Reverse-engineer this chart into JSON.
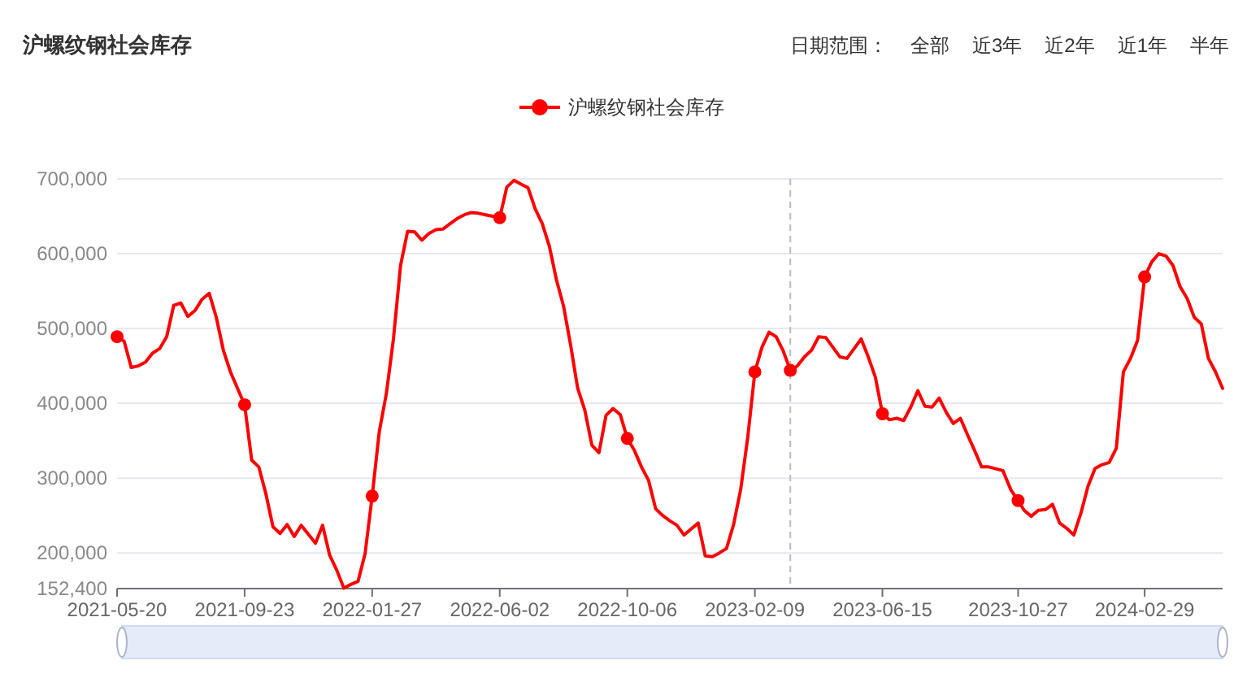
{
  "chart_data": {
    "type": "line",
    "title": "沪螺纹钢社会库存",
    "annotations": [
      "日期范围：",
      "全部",
      "近3年",
      "近2年",
      "近1年",
      "半年"
    ],
    "xlim": [
      "2021-05-20",
      "2024-05-16"
    ],
    "xticks": [
      "2021-05-20",
      "2021-09-23",
      "2022-01-27",
      "2022-06-02",
      "2022-10-06",
      "2023-02-09",
      "2023-06-15",
      "2023-10-27",
      "2024-02-29"
    ],
    "ylim": [
      152400,
      700000
    ],
    "yticks": [
      {
        "value": 152400,
        "label": "152,400"
      },
      {
        "value": 200000,
        "label": "200,000"
      },
      {
        "value": 300000,
        "label": "300,000"
      },
      {
        "value": 400000,
        "label": "400,000"
      },
      {
        "value": 500000,
        "label": "500,000"
      },
      {
        "value": 600000,
        "label": "600,000"
      },
      {
        "value": 700000,
        "label": "700,000"
      }
    ],
    "grid": "y",
    "legend": "top",
    "line_style": "solid",
    "ref_lines": [
      {
        "axis": "x",
        "value": "2023-03-16",
        "color": "#bbbbbb",
        "line_style": "dashed"
      }
    ],
    "series": [
      {
        "name": "沪螺纹钢社会库存",
        "color": "#ff0000",
        "x": [
          "2021-05-20",
          "2021-05-27",
          "2021-06-03",
          "2021-06-10",
          "2021-06-17",
          "2021-06-24",
          "2021-07-01",
          "2021-07-08",
          "2021-07-15",
          "2021-07-22",
          "2021-07-29",
          "2021-08-05",
          "2021-08-12",
          "2021-08-19",
          "2021-08-26",
          "2021-09-02",
          "2021-09-09",
          "2021-09-16",
          "2021-09-23",
          "2021-09-30",
          "2021-10-07",
          "2021-10-14",
          "2021-10-21",
          "2021-10-28",
          "2021-11-04",
          "2021-11-11",
          "2021-11-18",
          "2021-11-25",
          "2021-12-02",
          "2021-12-09",
          "2021-12-16",
          "2021-12-23",
          "2021-12-30",
          "2022-01-06",
          "2022-01-13",
          "2022-01-20",
          "2022-01-27",
          "2022-02-03",
          "2022-02-10",
          "2022-02-17",
          "2022-02-24",
          "2022-03-03",
          "2022-03-10",
          "2022-03-17",
          "2022-03-24",
          "2022-03-31",
          "2022-04-07",
          "2022-04-14",
          "2022-04-21",
          "2022-04-28",
          "2022-05-05",
          "2022-05-12",
          "2022-05-19",
          "2022-05-26",
          "2022-06-02",
          "2022-06-09",
          "2022-06-16",
          "2022-06-23",
          "2022-06-30",
          "2022-07-07",
          "2022-07-14",
          "2022-07-21",
          "2022-07-28",
          "2022-08-04",
          "2022-08-11",
          "2022-08-18",
          "2022-08-25",
          "2022-09-01",
          "2022-09-08",
          "2022-09-15",
          "2022-09-22",
          "2022-09-29",
          "2022-10-06",
          "2022-10-13",
          "2022-10-20",
          "2022-10-27",
          "2022-11-03",
          "2022-11-10",
          "2022-11-17",
          "2022-11-24",
          "2022-12-01",
          "2022-12-08",
          "2022-12-15",
          "2022-12-22",
          "2022-12-29",
          "2023-01-05",
          "2023-01-12",
          "2023-01-19",
          "2023-01-26",
          "2023-02-02",
          "2023-02-09",
          "2023-02-16",
          "2023-02-23",
          "2023-03-02",
          "2023-03-09",
          "2023-03-16",
          "2023-03-23",
          "2023-03-30",
          "2023-04-06",
          "2023-04-13",
          "2023-04-20",
          "2023-04-27",
          "2023-05-04",
          "2023-05-11",
          "2023-05-18",
          "2023-05-25",
          "2023-06-01",
          "2023-06-08",
          "2023-06-15",
          "2023-06-22",
          "2023-06-29",
          "2023-07-06",
          "2023-07-13",
          "2023-07-20",
          "2023-07-27",
          "2023-08-03",
          "2023-08-10",
          "2023-08-17",
          "2023-08-24",
          "2023-08-31",
          "2023-09-07",
          "2023-09-14",
          "2023-09-21",
          "2023-09-28",
          "2023-10-12",
          "2023-10-20",
          "2023-10-27",
          "2023-11-02",
          "2023-11-09",
          "2023-11-16",
          "2023-11-23",
          "2023-11-30",
          "2023-12-07",
          "2023-12-14",
          "2023-12-21",
          "2023-12-28",
          "2024-01-04",
          "2024-01-11",
          "2024-01-18",
          "2024-01-25",
          "2024-02-01",
          "2024-02-08",
          "2024-02-15",
          "2024-02-22",
          "2024-02-29",
          "2024-03-07",
          "2024-03-14",
          "2024-03-21",
          "2024-03-28",
          "2024-04-04",
          "2024-04-11",
          "2024-04-18",
          "2024-04-25",
          "2024-05-02",
          "2024-05-09",
          "2024-05-16"
        ],
        "values": [
          489000,
          483000,
          448000,
          450000,
          455000,
          467000,
          473000,
          489000,
          531000,
          534000,
          516000,
          524000,
          539000,
          547000,
          515000,
          471000,
          442000,
          420000,
          398000,
          324000,
          315000,
          279000,
          235000,
          226000,
          238000,
          222000,
          237000,
          225000,
          213000,
          237000,
          197000,
          177000,
          153000,
          158000,
          162000,
          199000,
          276000,
          362000,
          413000,
          486000,
          584000,
          630000,
          629000,
          618000,
          627000,
          632000,
          633000,
          640000,
          647000,
          652000,
          655000,
          654000,
          652000,
          650000,
          648000,
          689000,
          698000,
          693000,
          688000,
          660000,
          640000,
          610000,
          565000,
          530000,
          478000,
          420000,
          391000,
          344000,
          334000,
          384000,
          393000,
          385000,
          353000,
          337000,
          315000,
          297000,
          259000,
          250000,
          243000,
          237000,
          224000,
          232000,
          240000,
          196000,
          195000,
          200000,
          206000,
          238000,
          285000,
          355000,
          442000,
          475000,
          495000,
          489000,
          470000,
          444000,
          450000,
          462000,
          471000,
          489000,
          488000,
          475000,
          462000,
          460000,
          473000,
          486000,
          462000,
          435000,
          386000,
          378000,
          380000,
          377000,
          395000,
          417000,
          396000,
          395000,
          407000,
          388000,
          373000,
          380000,
          358000,
          337000,
          315000,
          315000,
          310000,
          284000,
          270000,
          257000,
          249000,
          257000,
          258000,
          265000,
          240000,
          233000,
          224000,
          253000,
          289000,
          313000,
          318000,
          321000,
          340000,
          442000,
          460000,
          484000,
          569000,
          589000,
          600000,
          597000,
          584000,
          556000,
          540000,
          515000,
          506000,
          460000,
          442000,
          420000
        ]
      },
      {
        "type": "scatter",
        "color": "#ff0000",
        "marker": "circle",
        "x": [
          "2021-05-20",
          "2021-09-23",
          "2022-01-27",
          "2022-06-02",
          "2022-10-06",
          "2023-02-09",
          "2023-03-16",
          "2023-06-15",
          "2023-10-27",
          "2024-02-29"
        ],
        "values": [
          489000,
          398000,
          276000,
          648000,
          353000,
          442000,
          444000,
          386000,
          270000,
          569000
        ]
      }
    ]
  }
}
